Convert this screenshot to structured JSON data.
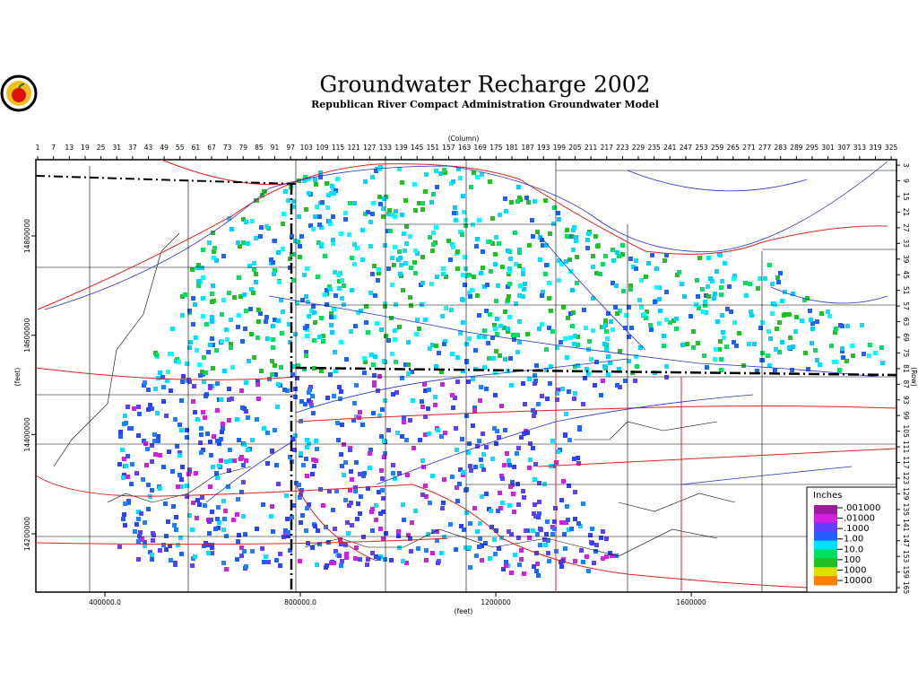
{
  "header": {
    "title": "Groundwater Recharge 2002",
    "subtitle": "Republican River Compact Administration Groundwater Model"
  },
  "map": {
    "column_axis": {
      "label": "(Column)",
      "lim": [
        0.3,
        327
      ],
      "ticks": [
        1,
        7,
        13,
        19,
        25,
        31,
        37,
        43,
        49,
        55,
        61,
        67,
        73,
        79,
        85,
        91,
        97,
        103,
        109,
        115,
        121,
        127,
        133,
        139,
        145,
        151,
        157,
        163,
        169,
        175,
        181,
        187,
        193,
        199,
        205,
        211,
        217,
        223,
        229,
        235,
        241,
        247,
        253,
        259,
        265,
        271,
        277,
        283,
        289,
        295,
        301,
        307,
        313,
        319,
        325
      ]
    },
    "row_axis": {
      "label": "(Row)",
      "lim": [
        0.9,
        166.7
      ],
      "ticks": [
        3,
        9,
        15,
        21,
        27,
        33,
        39,
        45,
        51,
        57,
        63,
        69,
        75,
        81,
        87,
        93,
        99,
        105,
        111,
        117,
        123,
        129,
        135,
        141,
        147,
        153,
        159,
        165
      ]
    },
    "x_axis": {
      "label": "(feet)",
      "lim": [
        258700,
        2020000
      ],
      "ticks": [
        {
          "value": 400000,
          "label": "400000.0"
        },
        {
          "value": 800000,
          "label": "800000.0"
        },
        1200000,
        1600000
      ]
    },
    "y_axis": {
      "label": "(feet)",
      "lim": [
        14082600,
        14953600
      ],
      "ticks": [
        14200000,
        14400000,
        14600000,
        14800000
      ]
    }
  },
  "legend": {
    "title": "Inches",
    "scale": "log",
    "lim": [
      0.00055,
      27000
    ],
    "colors": [
      "#9a1a9a",
      "#d020e0",
      "#6040ff",
      "#2060ff",
      "#00e0ff",
      "#00e060",
      "#20c020",
      "#e0e000",
      "#ff8000"
    ],
    "stops": [
      {
        "value": 0.001,
        "label": ".001000"
      },
      {
        "value": 0.01,
        "label": ".01000"
      },
      {
        "value": 0.1,
        "label": ".1000"
      },
      {
        "value": 1,
        "label": "1.00"
      },
      {
        "value": 10,
        "label": "10.0"
      },
      100,
      1000,
      10000
    ]
  }
}
